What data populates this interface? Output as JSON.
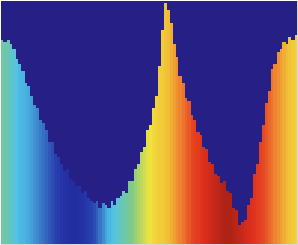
{
  "chart_data": {
    "type": "heatmap",
    "tick_labels": false,
    "xlim": [
      0,
      100
    ],
    "ylim": [
      0,
      100
    ],
    "zlim": [
      0,
      1
    ],
    "x": [
      0.5,
      1.5,
      2.5,
      3.5,
      4.5,
      5.5,
      6.5,
      7.5,
      8.5,
      9.5,
      10.5,
      11.5,
      12.5,
      13.5,
      14.5,
      15.5,
      16.5,
      17.5,
      18.5,
      19.5,
      20.5,
      21.5,
      22.5,
      23.5,
      24.5,
      25.5,
      26.5,
      27.5,
      28.5,
      29.5,
      30.5,
      31.5,
      32.5,
      33.5,
      34.5,
      35.5,
      36.5,
      37.5,
      38.5,
      39.5,
      40.5,
      41.5,
      42.5,
      43.5,
      44.5,
      45.5,
      46.5,
      47.5,
      48.5,
      49.5,
      50.5,
      51.5,
      52.5,
      53.5,
      54.5,
      55.5,
      56.5,
      57.5,
      58.5,
      59.5,
      60.5,
      61.5,
      62.5,
      63.5,
      64.5,
      65.5,
      66.5,
      67.5,
      68.5,
      69.5,
      70.5,
      71.5,
      72.5,
      73.5,
      74.5,
      75.5,
      76.5,
      77.5,
      78.5,
      79.5,
      80.5,
      81.5,
      82.5,
      83.5,
      84.5,
      85.5,
      86.5,
      87.5,
      88.5,
      89.5,
      90.5,
      91.5,
      92.5,
      93.5,
      94.5,
      95.5,
      96.5,
      97.5,
      98.5,
      99.5
    ],
    "values": [
      0.48,
      0.46,
      0.44,
      0.42,
      0.4,
      0.38,
      0.36,
      0.35,
      0.34,
      0.33,
      0.31,
      0.29,
      0.27,
      0.25,
      0.23,
      0.21,
      0.19,
      0.17,
      0.15,
      0.14,
      0.13,
      0.12,
      0.11,
      0.1,
      0.1,
      0.1,
      0.11,
      0.12,
      0.13,
      0.14,
      0.15,
      0.17,
      0.2,
      0.24,
      0.28,
      0.32,
      0.35,
      0.37,
      0.39,
      0.41,
      0.43,
      0.45,
      0.47,
      0.49,
      0.51,
      0.53,
      0.55,
      0.57,
      0.59,
      0.61,
      0.63,
      0.64,
      0.65,
      0.66,
      0.66,
      0.67,
      0.68,
      0.7,
      0.72,
      0.74,
      0.76,
      0.78,
      0.8,
      0.82,
      0.84,
      0.85,
      0.86,
      0.87,
      0.88,
      0.89,
      0.9,
      0.91,
      0.92,
      0.93,
      0.94,
      0.95,
      0.95,
      0.95,
      0.94,
      0.93,
      0.92,
      0.91,
      0.9,
      0.89,
      0.88,
      0.87,
      0.86,
      0.85,
      0.84,
      0.82,
      0.8,
      0.78,
      0.76,
      0.74,
      0.72,
      0.7,
      0.68,
      0.67,
      0.66,
      0.65
    ],
    "series": [
      {
        "type": "area",
        "color": "#251f86",
        "values": [
          84,
          83,
          84,
          82,
          80,
          76,
          74,
          71,
          66,
          65,
          61,
          57,
          56,
          51,
          50,
          47,
          42,
          42,
          37,
          36,
          33,
          30,
          31,
          27,
          26,
          24,
          24,
          21,
          22,
          19,
          18,
          17,
          18,
          15,
          17,
          16,
          15,
          18,
          16,
          19,
          20,
          22,
          21,
          26,
          26,
          31,
          33,
          38,
          40,
          47,
          49,
          56,
          61,
          73,
          88,
          99,
          96,
          91,
          82,
          77,
          69,
          66,
          60,
          59,
          53,
          51,
          46,
          45,
          40,
          39,
          34,
          33,
          29,
          28,
          25,
          26,
          22,
          21,
          15,
          14,
          8,
          9,
          10,
          16,
          19,
          29,
          33,
          42,
          49,
          58,
          63,
          72,
          74,
          79,
          80,
          83,
          82,
          85,
          84,
          86
        ]
      }
    ]
  }
}
